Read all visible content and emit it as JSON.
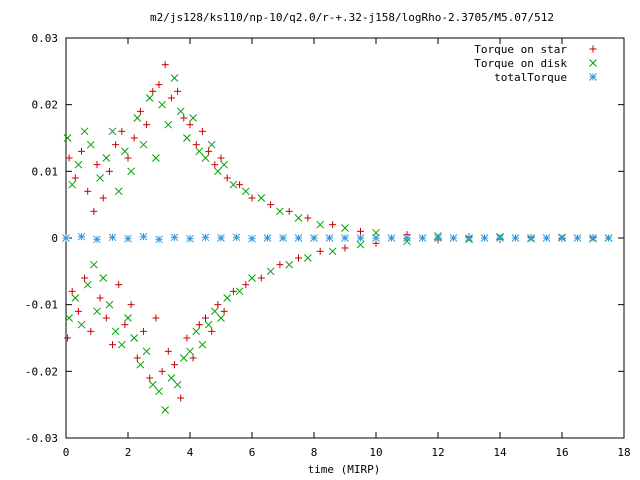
{
  "chart_data": {
    "type": "scatter",
    "title": "m2/js128/ks110/np-10/q2.0/r-+.32-j158/logRho-2.3705/M5.07/512",
    "xlabel": "time (MIRP)",
    "ylabel": "",
    "xlim": [
      0,
      18
    ],
    "ylim": [
      -0.03,
      0.03
    ],
    "xticks": [
      "0",
      "2",
      "4",
      "6",
      "8",
      "10",
      "12",
      "14",
      "16",
      "18"
    ],
    "yticks": [
      "0.03",
      "0.02",
      "0.01",
      "0",
      "-0.01",
      "-0.02",
      "-0.03"
    ],
    "xtick_values": [
      0,
      2,
      4,
      6,
      8,
      10,
      12,
      14,
      16,
      18
    ],
    "ytick_values": [
      0.03,
      0.02,
      0.01,
      0,
      -0.01,
      -0.02,
      -0.03
    ],
    "grid": false,
    "legend_position": "top-right",
    "series": [
      {
        "name": "Torque on star",
        "marker": "plus",
        "color": "#cc0000",
        "points": [
          [
            0.05,
            -0.015
          ],
          [
            0.1,
            0.012
          ],
          [
            0.2,
            -0.008
          ],
          [
            0.3,
            0.009
          ],
          [
            0.4,
            -0.011
          ],
          [
            0.5,
            0.013
          ],
          [
            0.6,
            -0.006
          ],
          [
            0.7,
            0.007
          ],
          [
            0.8,
            -0.014
          ],
          [
            0.9,
            0.004
          ],
          [
            1.0,
            0.011
          ],
          [
            1.1,
            -0.009
          ],
          [
            1.2,
            0.006
          ],
          [
            1.3,
            -0.012
          ],
          [
            1.4,
            0.01
          ],
          [
            1.5,
            -0.016
          ],
          [
            1.6,
            0.014
          ],
          [
            1.7,
            -0.007
          ],
          [
            1.8,
            0.016
          ],
          [
            1.9,
            -0.013
          ],
          [
            2.0,
            0.012
          ],
          [
            2.1,
            -0.01
          ],
          [
            2.2,
            0.015
          ],
          [
            2.3,
            -0.018
          ],
          [
            2.4,
            0.019
          ],
          [
            2.5,
            -0.014
          ],
          [
            2.6,
            0.017
          ],
          [
            2.7,
            -0.021
          ],
          [
            2.8,
            0.022
          ],
          [
            2.9,
            -0.012
          ],
          [
            3.0,
            0.023
          ],
          [
            3.1,
            -0.02
          ],
          [
            3.2,
            0.026
          ],
          [
            3.3,
            -0.017
          ],
          [
            3.4,
            0.021
          ],
          [
            3.5,
            -0.019
          ],
          [
            3.6,
            0.022
          ],
          [
            3.7,
            -0.024
          ],
          [
            3.8,
            0.018
          ],
          [
            3.9,
            -0.015
          ],
          [
            4.0,
            0.017
          ],
          [
            4.1,
            -0.018
          ],
          [
            4.2,
            0.014
          ],
          [
            4.3,
            -0.013
          ],
          [
            4.4,
            0.016
          ],
          [
            4.5,
            -0.012
          ],
          [
            4.6,
            0.013
          ],
          [
            4.7,
            -0.014
          ],
          [
            4.8,
            0.011
          ],
          [
            4.9,
            -0.01
          ],
          [
            5.0,
            0.012
          ],
          [
            5.1,
            -0.011
          ],
          [
            5.2,
            0.009
          ],
          [
            5.4,
            -0.008
          ],
          [
            5.6,
            0.008
          ],
          [
            5.8,
            -0.007
          ],
          [
            6.0,
            0.006
          ],
          [
            6.3,
            -0.006
          ],
          [
            6.6,
            0.005
          ],
          [
            6.9,
            -0.004
          ],
          [
            7.2,
            0.004
          ],
          [
            7.5,
            -0.003
          ],
          [
            7.8,
            0.003
          ],
          [
            8.2,
            -0.002
          ],
          [
            8.6,
            0.002
          ],
          [
            9.0,
            -0.0015
          ],
          [
            9.5,
            0.001
          ],
          [
            10.0,
            -0.0008
          ],
          [
            11.0,
            0.0005
          ],
          [
            12.0,
            -0.0003
          ],
          [
            13.0,
            0.0002
          ],
          [
            14.0,
            -0.0002
          ],
          [
            15.0,
            0.0001
          ],
          [
            16.0,
            -0.0001
          ],
          [
            17.0,
            0.0001
          ],
          [
            17.5,
            0.0
          ]
        ]
      },
      {
        "name": "Torque on disk",
        "marker": "x",
        "color": "#00a000",
        "points": [
          [
            0.05,
            0.015
          ],
          [
            0.1,
            -0.012
          ],
          [
            0.2,
            0.008
          ],
          [
            0.3,
            -0.009
          ],
          [
            0.4,
            0.011
          ],
          [
            0.5,
            -0.013
          ],
          [
            0.6,
            0.016
          ],
          [
            0.7,
            -0.007
          ],
          [
            0.8,
            0.014
          ],
          [
            0.9,
            -0.004
          ],
          [
            1.0,
            -0.011
          ],
          [
            1.1,
            0.009
          ],
          [
            1.2,
            -0.006
          ],
          [
            1.3,
            0.012
          ],
          [
            1.4,
            -0.01
          ],
          [
            1.5,
            0.016
          ],
          [
            1.6,
            -0.014
          ],
          [
            1.7,
            0.007
          ],
          [
            1.8,
            -0.016
          ],
          [
            1.9,
            0.013
          ],
          [
            2.0,
            -0.012
          ],
          [
            2.1,
            0.01
          ],
          [
            2.2,
            -0.015
          ],
          [
            2.3,
            0.018
          ],
          [
            2.4,
            -0.019
          ],
          [
            2.5,
            0.014
          ],
          [
            2.6,
            -0.017
          ],
          [
            2.7,
            0.021
          ],
          [
            2.8,
            -0.022
          ],
          [
            2.9,
            0.012
          ],
          [
            3.0,
            -0.023
          ],
          [
            3.1,
            0.02
          ],
          [
            3.2,
            -0.0258
          ],
          [
            3.3,
            0.017
          ],
          [
            3.4,
            -0.021
          ],
          [
            3.5,
            0.024
          ],
          [
            3.6,
            -0.022
          ],
          [
            3.7,
            0.019
          ],
          [
            3.8,
            -0.018
          ],
          [
            3.9,
            0.015
          ],
          [
            4.0,
            -0.017
          ],
          [
            4.1,
            0.018
          ],
          [
            4.2,
            -0.014
          ],
          [
            4.3,
            0.013
          ],
          [
            4.4,
            -0.016
          ],
          [
            4.5,
            0.012
          ],
          [
            4.6,
            -0.013
          ],
          [
            4.7,
            0.014
          ],
          [
            4.8,
            -0.011
          ],
          [
            4.9,
            0.01
          ],
          [
            5.0,
            -0.012
          ],
          [
            5.1,
            0.011
          ],
          [
            5.2,
            -0.009
          ],
          [
            5.4,
            0.008
          ],
          [
            5.6,
            -0.008
          ],
          [
            5.8,
            0.007
          ],
          [
            6.0,
            -0.006
          ],
          [
            6.3,
            0.006
          ],
          [
            6.6,
            -0.005
          ],
          [
            6.9,
            0.004
          ],
          [
            7.2,
            -0.004
          ],
          [
            7.5,
            0.003
          ],
          [
            7.8,
            -0.003
          ],
          [
            8.2,
            0.002
          ],
          [
            8.6,
            -0.002
          ],
          [
            9.0,
            0.0015
          ],
          [
            9.5,
            -0.001
          ],
          [
            10.0,
            0.0008
          ],
          [
            11.0,
            -0.0005
          ],
          [
            12.0,
            0.0003
          ],
          [
            13.0,
            -0.0002
          ],
          [
            14.0,
            0.0002
          ],
          [
            15.0,
            -0.0001
          ],
          [
            16.0,
            0.0001
          ],
          [
            17.0,
            -0.0001
          ],
          [
            17.5,
            0.0
          ]
        ]
      },
      {
        "name": "totalTorque",
        "marker": "star",
        "color": "#3399dd",
        "points": [
          [
            0.0,
            0.0
          ],
          [
            0.5,
            0.0002
          ],
          [
            1.0,
            -0.0002
          ],
          [
            1.5,
            0.0001
          ],
          [
            2.0,
            -0.0001
          ],
          [
            2.5,
            0.0002
          ],
          [
            3.0,
            -0.0002
          ],
          [
            3.5,
            0.0001
          ],
          [
            4.0,
            -0.0001
          ],
          [
            4.5,
            0.0001
          ],
          [
            5.0,
            0.0
          ],
          [
            5.5,
            0.0001
          ],
          [
            6.0,
            -0.0001
          ],
          [
            6.5,
            0.0
          ],
          [
            7.0,
            0.0
          ],
          [
            7.5,
            0.0
          ],
          [
            8.0,
            0.0
          ],
          [
            8.5,
            0.0
          ],
          [
            9.0,
            0.0
          ],
          [
            9.5,
            0.0
          ],
          [
            10.0,
            0.0
          ],
          [
            10.5,
            0.0
          ],
          [
            11.0,
            0.0
          ],
          [
            11.5,
            0.0
          ],
          [
            12.0,
            0.0
          ],
          [
            12.5,
            0.0
          ],
          [
            13.0,
            0.0
          ],
          [
            13.5,
            0.0
          ],
          [
            14.0,
            0.0
          ],
          [
            14.5,
            0.0
          ],
          [
            15.0,
            0.0
          ],
          [
            15.5,
            0.0
          ],
          [
            16.0,
            0.0
          ],
          [
            16.5,
            0.0
          ],
          [
            17.0,
            0.0
          ],
          [
            17.5,
            0.0
          ]
        ]
      }
    ]
  }
}
